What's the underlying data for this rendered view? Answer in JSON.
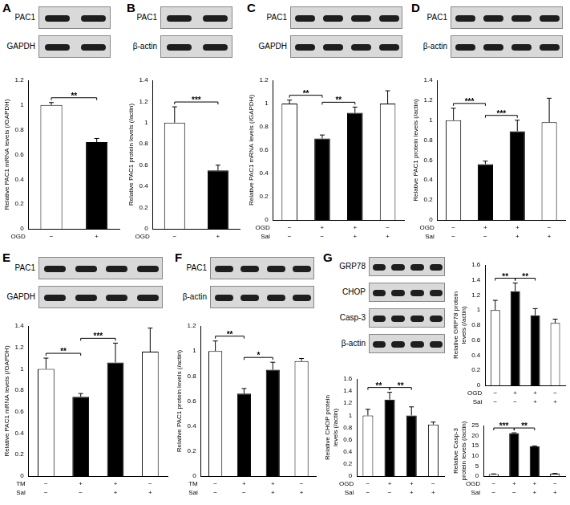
{
  "panels": [
    {
      "label": "A",
      "blot": [
        "PAC1",
        "GAPDH"
      ]
    },
    {
      "label": "B",
      "blot": [
        "PAC1",
        "β-actin"
      ]
    },
    {
      "label": "C",
      "blot": [
        "PAC1",
        "GAPDH"
      ]
    },
    {
      "label": "D",
      "blot": [
        "PAC1",
        "β-actin"
      ]
    },
    {
      "label": "E",
      "blot": [
        "PAC1",
        "GAPDH"
      ]
    },
    {
      "label": "F",
      "blot": [
        "PAC1",
        "β-actin"
      ]
    },
    {
      "label": "G",
      "blot": [
        "GRP78",
        "CHOP",
        "Casp-3",
        "β-actin"
      ]
    }
  ],
  "chart_data": [
    {
      "panel": "A",
      "type": "bar",
      "y_label": "Relative PAC1 mRNA levels (/GAPDH)",
      "categories": [
        null,
        null
      ],
      "values": [
        1.0,
        0.7
      ],
      "errors": [
        0.02,
        0.03
      ],
      "colors": [
        "#ffffff",
        "#000000"
      ],
      "ylim": [
        0,
        1.2
      ],
      "yticks": [
        0,
        0.2,
        0.4,
        0.6,
        0.8,
        1,
        1.2
      ],
      "grid": false,
      "conditions": [
        {
          "name": "OGD",
          "signs": [
            "−",
            "+"
          ]
        }
      ],
      "significance": [
        {
          "between": [
            0,
            1
          ],
          "label": "**"
        }
      ]
    },
    {
      "panel": "B",
      "type": "bar",
      "y_label": "Relative PAC1 protein levels (/actin)",
      "categories": [
        null,
        null
      ],
      "values": [
        1.0,
        0.55
      ],
      "errors": [
        0.15,
        0.05
      ],
      "colors": [
        "#ffffff",
        "#000000"
      ],
      "ylim": [
        0,
        1.4
      ],
      "yticks": [
        0,
        0.2,
        0.4,
        0.6,
        0.8,
        1,
        1.2,
        1.4
      ],
      "grid": false,
      "conditions": [
        {
          "name": "OGD",
          "signs": [
            "−",
            "+"
          ]
        }
      ],
      "significance": [
        {
          "between": [
            0,
            1
          ],
          "label": "***"
        }
      ]
    },
    {
      "panel": "C",
      "type": "bar",
      "y_label": "Relative PAC1 mRNA levels (/GAPDH)",
      "categories": [
        null,
        null,
        null,
        null
      ],
      "values": [
        1.0,
        0.7,
        0.92,
        1.0
      ],
      "errors": [
        0.03,
        0.03,
        0.05,
        0.11
      ],
      "colors": [
        "#ffffff",
        "#000000",
        "#000000",
        "#ffffff"
      ],
      "ylim": [
        0,
        1.2
      ],
      "yticks": [
        0,
        0.2,
        0.4,
        0.6,
        0.8,
        1,
        1.2
      ],
      "grid": false,
      "conditions": [
        {
          "name": "OGD",
          "signs": [
            "−",
            "+",
            "+",
            "−"
          ]
        },
        {
          "name": "Sal",
          "signs": [
            "−",
            "−",
            "+",
            "+"
          ]
        }
      ],
      "significance": [
        {
          "between": [
            0,
            1
          ],
          "label": "**"
        },
        {
          "between": [
            1,
            2
          ],
          "label": "**"
        }
      ]
    },
    {
      "panel": "D",
      "type": "bar",
      "y_label": "Relative PAC1 protein levels (/actin)",
      "categories": [
        null,
        null,
        null,
        null
      ],
      "values": [
        1.0,
        0.56,
        0.89,
        0.98
      ],
      "errors": [
        0.12,
        0.03,
        0.11,
        0.24
      ],
      "colors": [
        "#ffffff",
        "#000000",
        "#000000",
        "#ffffff"
      ],
      "ylim": [
        0,
        1.4
      ],
      "yticks": [
        0,
        0.2,
        0.4,
        0.6,
        0.8,
        1,
        1.2,
        1.4
      ],
      "grid": false,
      "conditions": [
        {
          "name": "OGD",
          "signs": [
            "−",
            "+",
            "+",
            "−"
          ]
        },
        {
          "name": "Sal",
          "signs": [
            "−",
            "−",
            "+",
            "+"
          ]
        }
      ],
      "significance": [
        {
          "between": [
            0,
            1
          ],
          "label": "***"
        },
        {
          "between": [
            1,
            2
          ],
          "label": "***"
        }
      ]
    },
    {
      "panel": "E",
      "type": "bar",
      "y_label": "Relative PAC1 mRNA levels (/GAPDH)",
      "categories": [
        null,
        null,
        null,
        null
      ],
      "values": [
        1.0,
        0.74,
        1.06,
        1.16
      ],
      "errors": [
        0.1,
        0.03,
        0.18,
        0.22
      ],
      "colors": [
        "#ffffff",
        "#000000",
        "#000000",
        "#ffffff"
      ],
      "ylim": [
        0,
        1.4
      ],
      "yticks": [
        0,
        0.2,
        0.4,
        0.6,
        0.8,
        1,
        1.2,
        1.4
      ],
      "grid": false,
      "conditions": [
        {
          "name": "TM",
          "signs": [
            "−",
            "+",
            "+",
            "−"
          ]
        },
        {
          "name": "Sal",
          "signs": [
            "−",
            "−",
            "+",
            "+"
          ]
        }
      ],
      "significance": [
        {
          "between": [
            0,
            1
          ],
          "label": "**"
        },
        {
          "between": [
            1,
            2
          ],
          "label": "***"
        }
      ]
    },
    {
      "panel": "F",
      "type": "bar",
      "y_label": "Relative PAC1 protein levels (/actin)",
      "categories": [
        null,
        null,
        null,
        null
      ],
      "values": [
        1.0,
        0.66,
        0.85,
        0.92
      ],
      "errors": [
        0.08,
        0.04,
        0.06,
        0.02
      ],
      "colors": [
        "#ffffff",
        "#000000",
        "#000000",
        "#ffffff"
      ],
      "ylim": [
        0,
        1.2
      ],
      "yticks": [
        0,
        0.2,
        0.4,
        0.6,
        0.8,
        1,
        1.2
      ],
      "grid": false,
      "conditions": [
        {
          "name": "TM",
          "signs": [
            "−",
            "+",
            "+",
            "−"
          ]
        },
        {
          "name": "Sal",
          "signs": [
            "−",
            "−",
            "+",
            "+"
          ]
        }
      ],
      "significance": [
        {
          "between": [
            0,
            1
          ],
          "label": "**"
        },
        {
          "between": [
            1,
            2
          ],
          "label": "*"
        }
      ]
    },
    {
      "panel": "G",
      "type": "bar",
      "y_label": "Relative GRP78 protein levels (/actin)",
      "categories": [
        null,
        null,
        null,
        null
      ],
      "values": [
        1.0,
        1.25,
        0.93,
        0.83
      ],
      "errors": [
        0.13,
        0.11,
        0.09,
        0.05
      ],
      "colors": [
        "#ffffff",
        "#000000",
        "#000000",
        "#ffffff"
      ],
      "ylim": [
        0,
        1.6
      ],
      "yticks": [
        0,
        0.2,
        0.4,
        0.6,
        0.8,
        1,
        1.2,
        1.4,
        1.6
      ],
      "grid": false,
      "conditions": [
        {
          "name": "OGD",
          "signs": [
            "−",
            "+",
            "+",
            "−"
          ]
        },
        {
          "name": "Sal",
          "signs": [
            "−",
            "−",
            "+",
            "+"
          ]
        }
      ],
      "significance": [
        {
          "between": [
            0,
            1
          ],
          "label": "**"
        },
        {
          "between": [
            1,
            2
          ],
          "label": "**"
        }
      ]
    },
    {
      "panel": "G",
      "type": "bar",
      "y_label": "Relative CHOP protein levels (/actin)",
      "categories": [
        null,
        null,
        null,
        null
      ],
      "values": [
        1.0,
        1.26,
        1.0,
        0.85
      ],
      "errors": [
        0.1,
        0.12,
        0.14,
        0.04
      ],
      "colors": [
        "#ffffff",
        "#000000",
        "#000000",
        "#ffffff"
      ],
      "ylim": [
        0,
        1.6
      ],
      "yticks": [
        0,
        0.2,
        0.4,
        0.6,
        0.8,
        1,
        1.2,
        1.4,
        1.6
      ],
      "grid": false,
      "conditions": [
        {
          "name": "OGD",
          "signs": [
            "−",
            "+",
            "+",
            "−"
          ]
        },
        {
          "name": "Sal",
          "signs": [
            "−",
            "−",
            "+",
            "+"
          ]
        }
      ],
      "significance": [
        {
          "between": [
            0,
            1
          ],
          "label": "**"
        },
        {
          "between": [
            1,
            2
          ],
          "label": "**"
        }
      ]
    },
    {
      "panel": "G",
      "type": "bar",
      "y_label": "Relative Casp-3 protein levels (/actin)",
      "categories": [
        null,
        null,
        null,
        null
      ],
      "values": [
        1.0,
        21.2,
        14.8,
        1.2
      ],
      "errors": [
        0.1,
        0.2,
        0.1,
        0.1
      ],
      "colors": [
        "#ffffff",
        "#000000",
        "#000000",
        "#ffffff"
      ],
      "ylim": [
        0,
        25
      ],
      "yticks": [
        0,
        5,
        10,
        15,
        20,
        25
      ],
      "grid": false,
      "conditions": [
        {
          "name": "OGD",
          "signs": [
            "−",
            "+",
            "+",
            "−"
          ]
        },
        {
          "name": "Sal",
          "signs": [
            "−",
            "−",
            "+",
            "+"
          ]
        }
      ],
      "significance": [
        {
          "between": [
            0,
            1
          ],
          "label": "***"
        },
        {
          "between": [
            1,
            2
          ],
          "label": "**"
        }
      ]
    }
  ]
}
